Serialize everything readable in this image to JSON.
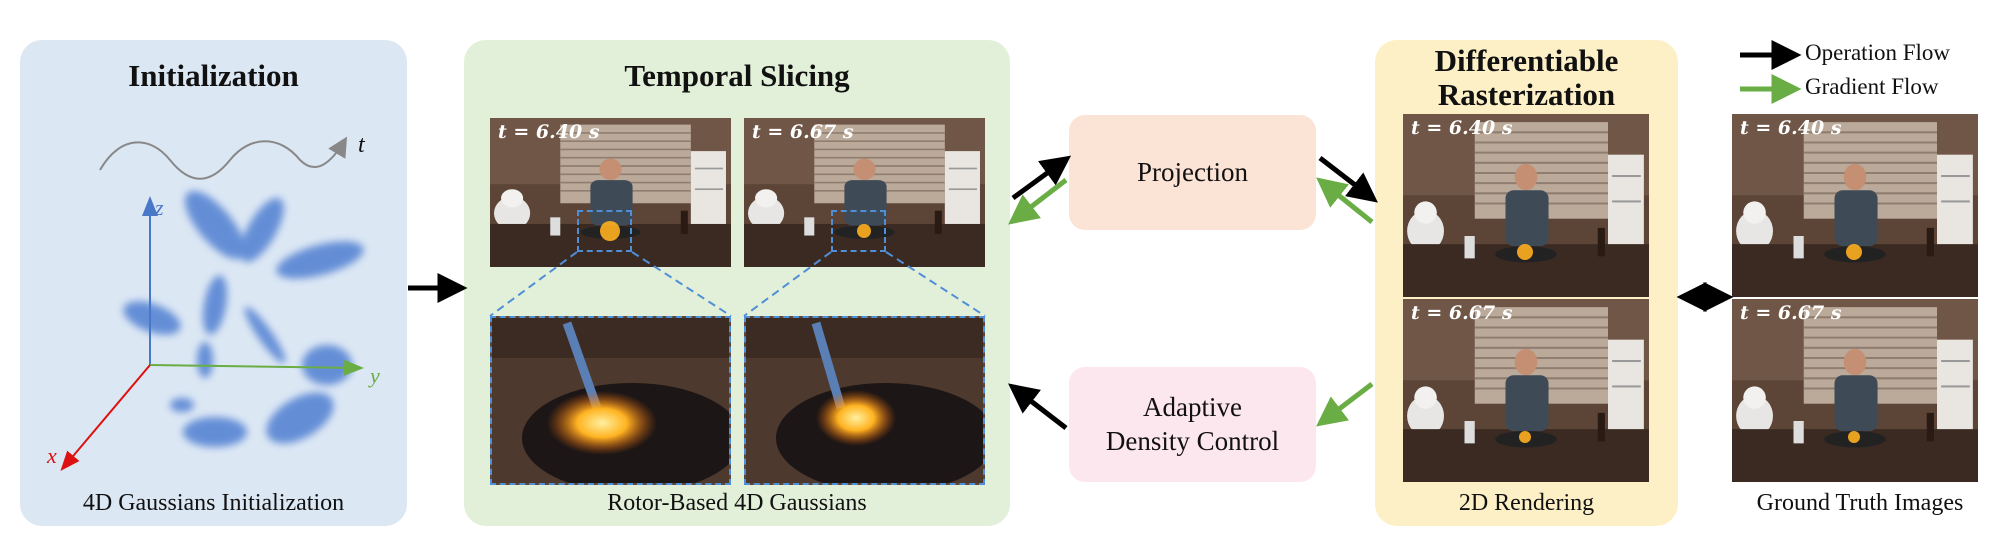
{
  "initialization": {
    "title": "Initialization",
    "caption": "4D Gaussians Initialization",
    "axes": {
      "time": "t",
      "x": "x",
      "y": "y",
      "z": "z"
    }
  },
  "temporal_slicing": {
    "title": "Temporal Slicing",
    "caption": "Rotor-Based 4D Gaussians",
    "frames": [
      {
        "time_label": "t = 6.40 s"
      },
      {
        "time_label": "t = 6.67 s"
      }
    ]
  },
  "projection": {
    "label": "Projection"
  },
  "adaptive_density_control": {
    "line1": "Adaptive",
    "line2": "Density Control"
  },
  "rasterization": {
    "title_line1": "Differentiable",
    "title_line2": "Rasterization",
    "caption": "2D Rendering",
    "frames": [
      {
        "time_label": "t = 6.40 s"
      },
      {
        "time_label": "t = 6.67 s"
      }
    ]
  },
  "ground_truth": {
    "caption": "Ground Truth Images",
    "frames": [
      {
        "time_label": "t = 6.40 s"
      },
      {
        "time_label": "t = 6.67 s"
      }
    ]
  },
  "legend": {
    "operation_flow": "Operation Flow",
    "gradient_flow": "Gradient Flow",
    "operation_color": "#000000",
    "gradient_color": "#6aad45"
  }
}
